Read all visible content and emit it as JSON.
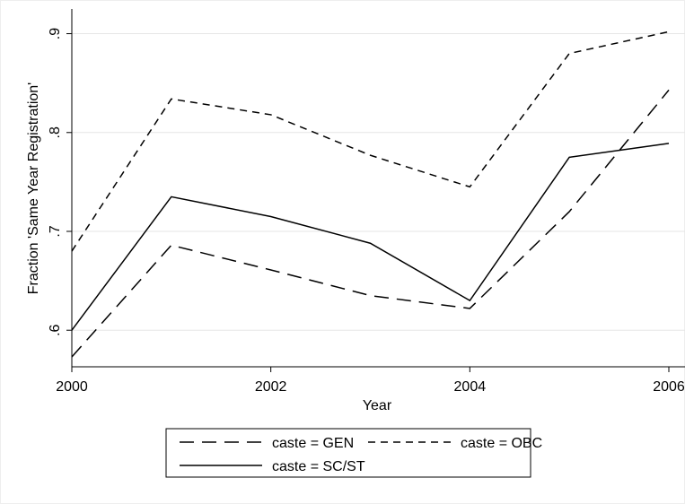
{
  "chart_data": {
    "type": "line",
    "x_label": "Year",
    "y_label": "Fraction 'Same Year Registration'",
    "x": [
      2000,
      2001,
      2002,
      2003,
      2004,
      2005,
      2006
    ],
    "series": [
      {
        "name": "caste = GEN",
        "color": "#000000",
        "dash": "long-dash",
        "values": [
          0.573,
          0.686,
          0.661,
          0.635,
          0.622,
          0.72,
          0.843
        ]
      },
      {
        "name": "caste = OBC",
        "color": "#000000",
        "dash": "short-dash",
        "values": [
          0.68,
          0.834,
          0.818,
          0.777,
          0.745,
          0.88,
          0.902
        ]
      },
      {
        "name": "caste = SC/ST",
        "color": "#000000",
        "dash": "solid",
        "values": [
          0.6,
          0.735,
          0.715,
          0.688,
          0.63,
          0.775,
          0.789
        ]
      }
    ],
    "xlim": [
      2000,
      2006
    ],
    "xticks": [
      2000,
      2002,
      2004,
      2006
    ],
    "ylim": [
      0.563,
      0.925
    ],
    "yticks": [
      {
        "value": 0.6,
        "label": ".6"
      },
      {
        "value": 0.7,
        "label": ".7"
      },
      {
        "value": 0.8,
        "label": ".8"
      },
      {
        "value": 0.9,
        "label": ".9"
      }
    ],
    "grid": true
  }
}
